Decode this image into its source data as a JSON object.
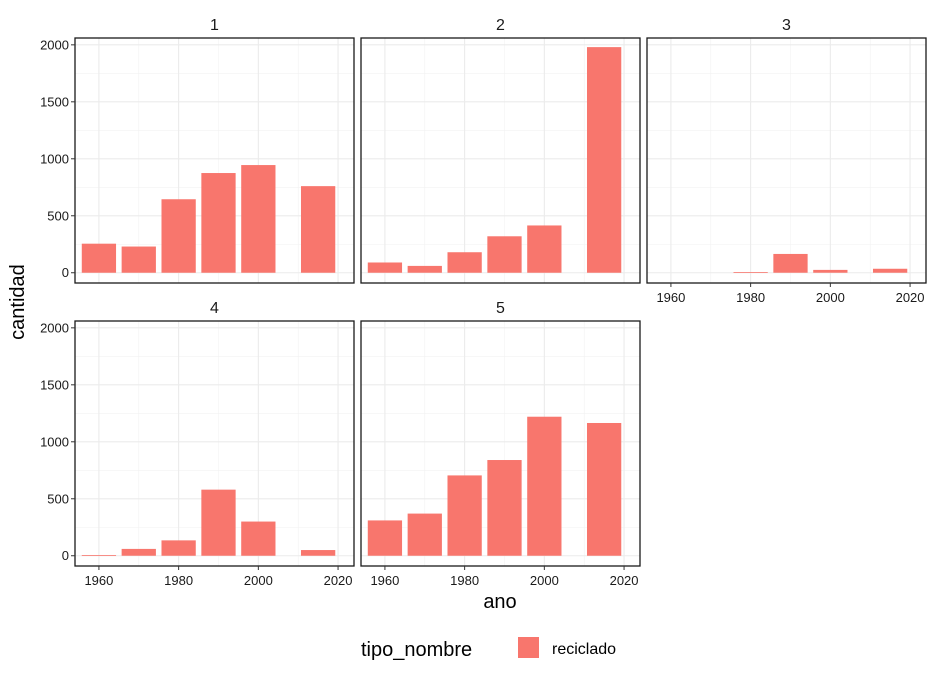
{
  "chart_data": {
    "type": "bar",
    "facet_variable": "",
    "xlabel": "ano",
    "ylabel": "cantidad",
    "x_ticks": [
      1960,
      1980,
      2000,
      2020
    ],
    "y_ticks": [
      0,
      500,
      1000,
      1500,
      2000
    ],
    "xlim": [
      1954,
      2024
    ],
    "ylim": [
      -90,
      2060
    ],
    "grid": true,
    "legend": {
      "title": "tipo_nombre",
      "position": "bottom",
      "entries": [
        {
          "label": "reciclado",
          "color": "#F8766D"
        }
      ]
    },
    "facets": [
      {
        "label": "1",
        "series": [
          {
            "name": "reciclado",
            "x": [
              1960,
              1970,
              1980,
              1990,
              2000,
              2015
            ],
            "values": [
              255,
              230,
              645,
              875,
              945,
              760
            ]
          }
        ]
      },
      {
        "label": "2",
        "series": [
          {
            "name": "reciclado",
            "x": [
              1960,
              1970,
              1980,
              1990,
              2000,
              2015
            ],
            "values": [
              90,
              60,
              180,
              320,
              415,
              1980
            ]
          }
        ]
      },
      {
        "label": "3",
        "series": [
          {
            "name": "reciclado",
            "x": [
              1980,
              1990,
              2000,
              2015
            ],
            "values": [
              5,
              165,
              25,
              35
            ]
          }
        ]
      },
      {
        "label": "4",
        "series": [
          {
            "name": "reciclado",
            "x": [
              1960,
              1970,
              1980,
              1990,
              2000,
              2015
            ],
            "values": [
              5,
              60,
              135,
              580,
              300,
              50
            ]
          }
        ]
      },
      {
        "label": "5",
        "series": [
          {
            "name": "reciclado",
            "x": [
              1960,
              1970,
              1980,
              1990,
              2000,
              2015
            ],
            "values": [
              310,
              370,
              705,
              840,
              1220,
              1165
            ]
          }
        ]
      }
    ]
  }
}
